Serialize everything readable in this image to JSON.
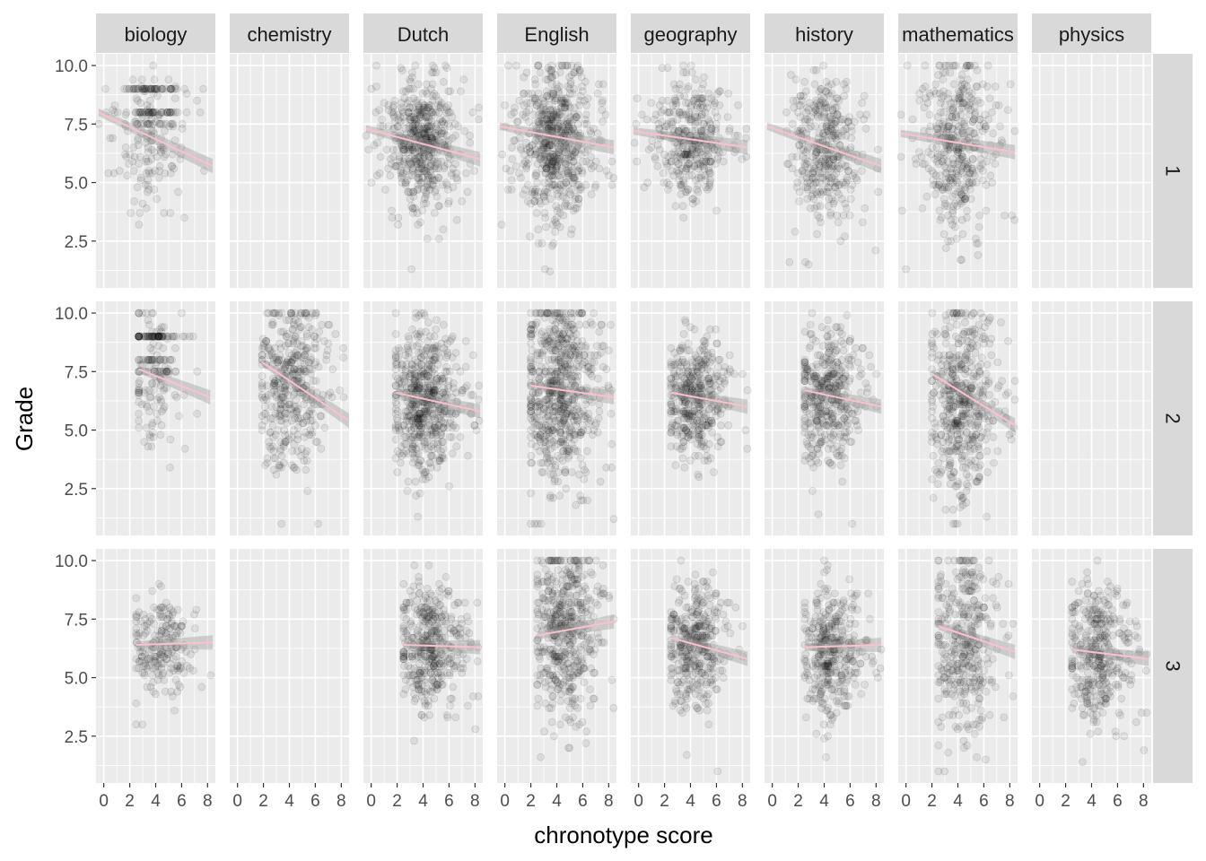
{
  "chart_data": {
    "type": "scatter",
    "facet_columns": [
      "biology",
      "chemistry",
      "Dutch",
      "English",
      "geography",
      "history",
      "mathematics",
      "physics"
    ],
    "facet_rows": [
      "1",
      "2",
      "3"
    ],
    "xlabel": "chronotype score",
    "ylabel": "Grade",
    "xlim": [
      -0.6,
      8.6
    ],
    "ylim": [
      0.5,
      10.5
    ],
    "x_ticks": [
      0,
      2,
      4,
      6,
      8
    ],
    "y_ticks": [
      2.5,
      5.0,
      7.5,
      10.0
    ],
    "x_tick_labels": [
      "0",
      "2",
      "4",
      "6",
      "8"
    ],
    "y_tick_labels": [
      "2.5",
      "5.0",
      "7.5",
      "10.0"
    ],
    "grid": true,
    "point_color": "#000000",
    "line_color": "#ffc0cb",
    "ribbon_color": "#999999",
    "panels": [
      {
        "row": "1",
        "col": "biology",
        "has_data": true,
        "x_range": [
          -0.4,
          8.4
        ],
        "x_center": 3.6,
        "x_spread": 1.2,
        "grade_mean": 6.8,
        "grade_sd": 1.5,
        "density": 0.6,
        "banded": true,
        "fit": {
          "x": [
            -0.4,
            8.4
          ],
          "y": [
            8.0,
            5.7
          ]
        }
      },
      {
        "row": "1",
        "col": "chemistry",
        "has_data": false
      },
      {
        "row": "1",
        "col": "Dutch",
        "has_data": true,
        "x_range": [
          -0.4,
          8.4
        ],
        "x_center": 4.0,
        "x_spread": 1.2,
        "grade_mean": 6.6,
        "grade_sd": 1.4,
        "density": 1.3,
        "banded": false,
        "fit": {
          "x": [
            -0.4,
            8.4
          ],
          "y": [
            7.3,
            6.0
          ]
        }
      },
      {
        "row": "1",
        "col": "English",
        "has_data": true,
        "x_range": [
          -0.4,
          8.4
        ],
        "x_center": 3.9,
        "x_spread": 1.3,
        "grade_mean": 6.9,
        "grade_sd": 1.7,
        "density": 1.5,
        "banded": false,
        "fit": {
          "x": [
            -0.4,
            8.4
          ],
          "y": [
            7.4,
            6.5
          ]
        }
      },
      {
        "row": "1",
        "col": "geography",
        "has_data": true,
        "x_range": [
          -0.4,
          8.4
        ],
        "x_center": 4.0,
        "x_spread": 1.2,
        "grade_mean": 6.9,
        "grade_sd": 1.2,
        "density": 0.9,
        "banded": false,
        "fit": {
          "x": [
            -0.4,
            8.4
          ],
          "y": [
            7.2,
            6.5
          ]
        }
      },
      {
        "row": "1",
        "col": "history",
        "has_data": true,
        "x_range": [
          -0.4,
          8.4
        ],
        "x_center": 4.0,
        "x_spread": 1.2,
        "grade_mean": 6.5,
        "grade_sd": 1.6,
        "density": 0.9,
        "banded": false,
        "fit": {
          "x": [
            -0.4,
            8.4
          ],
          "y": [
            7.4,
            5.7
          ]
        }
      },
      {
        "row": "1",
        "col": "mathematics",
        "has_data": true,
        "x_range": [
          -0.4,
          8.4
        ],
        "x_center": 3.8,
        "x_spread": 1.2,
        "grade_mean": 6.7,
        "grade_sd": 1.8,
        "density": 1.0,
        "banded": false,
        "fit": {
          "x": [
            -0.4,
            8.4
          ],
          "y": [
            7.1,
            6.3
          ]
        }
      },
      {
        "row": "1",
        "col": "physics",
        "has_data": false
      },
      {
        "row": "2",
        "col": "biology",
        "has_data": true,
        "x_range": [
          2.7,
          8.2
        ],
        "x_center": 3.8,
        "x_spread": 1.0,
        "grade_mean": 7.0,
        "grade_sd": 1.6,
        "density": 0.5,
        "banded": true,
        "fit": {
          "x": [
            2.7,
            8.2
          ],
          "y": [
            7.6,
            6.4
          ]
        }
      },
      {
        "row": "2",
        "col": "chemistry",
        "has_data": true,
        "x_range": [
          1.9,
          8.6
        ],
        "x_center": 4.2,
        "x_spread": 1.3,
        "grade_mean": 6.9,
        "grade_sd": 1.9,
        "density": 1.0,
        "banded": false,
        "fit": {
          "x": [
            1.9,
            8.6
          ],
          "y": [
            7.9,
            5.4
          ]
        }
      },
      {
        "row": "2",
        "col": "Dutch",
        "has_data": true,
        "x_range": [
          1.9,
          8.4
        ],
        "x_center": 4.0,
        "x_spread": 1.2,
        "grade_mean": 6.4,
        "grade_sd": 1.5,
        "density": 1.4,
        "banded": false,
        "fit": {
          "x": [
            1.9,
            8.4
          ],
          "y": [
            6.6,
            5.8
          ]
        }
      },
      {
        "row": "2",
        "col": "English",
        "has_data": true,
        "x_range": [
          2.0,
          8.4
        ],
        "x_center": 4.1,
        "x_spread": 1.3,
        "grade_mean": 6.8,
        "grade_sd": 2.0,
        "density": 1.6,
        "banded": false,
        "fit": {
          "x": [
            2.0,
            8.4
          ],
          "y": [
            6.9,
            6.4
          ]
        }
      },
      {
        "row": "2",
        "col": "geography",
        "has_data": true,
        "x_range": [
          2.5,
          8.4
        ],
        "x_center": 4.2,
        "x_spread": 1.1,
        "grade_mean": 6.4,
        "grade_sd": 1.2,
        "density": 1.0,
        "banded": false,
        "fit": {
          "x": [
            2.5,
            8.4
          ],
          "y": [
            6.6,
            6.0
          ]
        }
      },
      {
        "row": "2",
        "col": "history",
        "has_data": true,
        "x_range": [
          2.5,
          8.4
        ],
        "x_center": 4.3,
        "x_spread": 1.2,
        "grade_mean": 6.4,
        "grade_sd": 1.5,
        "density": 1.0,
        "banded": false,
        "fit": {
          "x": [
            2.5,
            8.4
          ],
          "y": [
            6.7,
            6.0
          ]
        }
      },
      {
        "row": "2",
        "col": "mathematics",
        "has_data": true,
        "x_range": [
          2.0,
          8.4
        ],
        "x_center": 4.2,
        "x_spread": 1.2,
        "grade_mean": 6.4,
        "grade_sd": 2.0,
        "density": 1.2,
        "banded": false,
        "fit": {
          "x": [
            2.0,
            8.4
          ],
          "y": [
            7.4,
            5.2
          ]
        }
      },
      {
        "row": "2",
        "col": "physics",
        "has_data": false
      },
      {
        "row": "3",
        "col": "biology",
        "has_data": true,
        "x_range": [
          2.5,
          8.4
        ],
        "x_center": 4.3,
        "x_spread": 1.1,
        "grade_mean": 6.4,
        "grade_sd": 1.1,
        "density": 0.5,
        "banded": false,
        "fit": {
          "x": [
            2.5,
            8.4
          ],
          "y": [
            6.4,
            6.5
          ]
        }
      },
      {
        "row": "3",
        "col": "chemistry",
        "has_data": false
      },
      {
        "row": "3",
        "col": "Dutch",
        "has_data": true,
        "x_range": [
          2.5,
          8.4
        ],
        "x_center": 4.4,
        "x_spread": 1.1,
        "grade_mean": 6.4,
        "grade_sd": 1.3,
        "density": 1.0,
        "banded": false,
        "fit": {
          "x": [
            2.5,
            8.4
          ],
          "y": [
            6.4,
            6.3
          ]
        }
      },
      {
        "row": "3",
        "col": "English",
        "has_data": true,
        "x_range": [
          2.5,
          8.4
        ],
        "x_center": 4.5,
        "x_spread": 1.2,
        "grade_mean": 7.0,
        "grade_sd": 1.8,
        "density": 1.2,
        "banded": false,
        "fit": {
          "x": [
            2.5,
            8.4
          ],
          "y": [
            6.8,
            7.4
          ]
        }
      },
      {
        "row": "3",
        "col": "geography",
        "has_data": true,
        "x_range": [
          2.5,
          8.4
        ],
        "x_center": 4.4,
        "x_spread": 1.1,
        "grade_mean": 6.3,
        "grade_sd": 1.4,
        "density": 0.9,
        "banded": false,
        "fit": {
          "x": [
            2.5,
            8.4
          ],
          "y": [
            6.7,
            5.8
          ]
        }
      },
      {
        "row": "3",
        "col": "history",
        "has_data": true,
        "x_range": [
          2.5,
          8.4
        ],
        "x_center": 4.5,
        "x_spread": 1.1,
        "grade_mean": 6.3,
        "grade_sd": 1.4,
        "density": 0.9,
        "banded": false,
        "fit": {
          "x": [
            2.5,
            8.4
          ],
          "y": [
            6.3,
            6.4
          ]
        }
      },
      {
        "row": "3",
        "col": "mathematics",
        "has_data": true,
        "x_range": [
          2.5,
          8.4
        ],
        "x_center": 4.3,
        "x_spread": 1.1,
        "grade_mean": 6.6,
        "grade_sd": 2.0,
        "density": 0.9,
        "banded": false,
        "fit": {
          "x": [
            2.5,
            8.4
          ],
          "y": [
            7.2,
            6.1
          ]
        }
      },
      {
        "row": "3",
        "col": "physics",
        "has_data": true,
        "x_range": [
          2.5,
          8.4
        ],
        "x_center": 4.4,
        "x_spread": 1.1,
        "grade_mean": 6.1,
        "grade_sd": 1.5,
        "density": 0.9,
        "banded": false,
        "fit": {
          "x": [
            2.5,
            8.4
          ],
          "y": [
            6.2,
            5.8
          ]
        }
      }
    ]
  }
}
